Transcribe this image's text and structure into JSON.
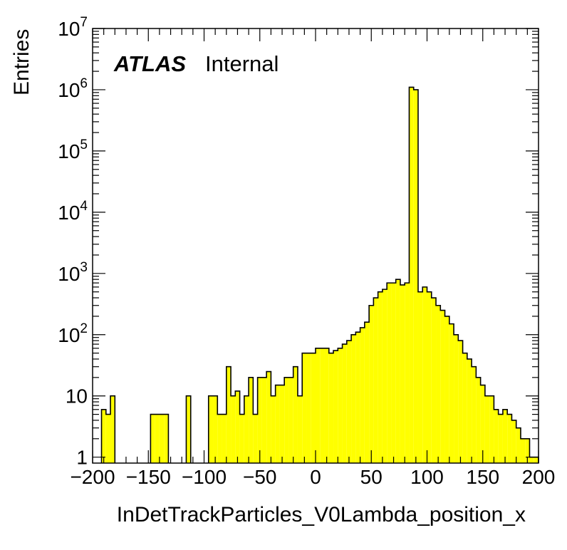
{
  "chart_data": {
    "type": "histogram",
    "title": "",
    "xlabel": "InDetTrackParticles_V0Lambda_position_x",
    "ylabel": "Entries",
    "xlim": [
      -200,
      200
    ],
    "ylim": [
      0.8,
      10000000
    ],
    "yscale": "log",
    "grid": false,
    "fill_color": "#ffff00",
    "line_color": "#000000",
    "bin_width": 4,
    "x_ticks": [
      "−200",
      "−150",
      "−100",
      "−50",
      "0",
      "50",
      "100",
      "150",
      "200"
    ],
    "x_tick_values": [
      -200,
      -150,
      -100,
      -50,
      0,
      50,
      100,
      150,
      200
    ],
    "y_ticks": [
      {
        "base": "1",
        "exp": "",
        "value": 1
      },
      {
        "base": "10",
        "exp": "",
        "value": 10
      },
      {
        "base": "10",
        "exp": "2",
        "value": 100
      },
      {
        "base": "10",
        "exp": "3",
        "value": 1000
      },
      {
        "base": "10",
        "exp": "4",
        "value": 10000
      },
      {
        "base": "10",
        "exp": "5",
        "value": 100000
      },
      {
        "base": "10",
        "exp": "6",
        "value": 1000000
      },
      {
        "base": "10",
        "exp": "7",
        "value": 10000000
      }
    ],
    "bin_edges_start": -200,
    "values": [
      0,
      0,
      6,
      5,
      10,
      0,
      0,
      0,
      0,
      0,
      0,
      0,
      0,
      5,
      5,
      5,
      5,
      0,
      0,
      0,
      0,
      10,
      0,
      0,
      0,
      0,
      10,
      10,
      5,
      5,
      30,
      10,
      12,
      5,
      10,
      20,
      5,
      20,
      20,
      25,
      10,
      15,
      15,
      20,
      20,
      30,
      10,
      50,
      50,
      50,
      60,
      60,
      60,
      50,
      55,
      60,
      70,
      80,
      100,
      110,
      130,
      160,
      300,
      400,
      500,
      550,
      700,
      700,
      800,
      650,
      700,
      1100000,
      1000000,
      500,
      600,
      500,
      400,
      300,
      250,
      200,
      150,
      100,
      80,
      50,
      40,
      30,
      20,
      15,
      10,
      10,
      6,
      5,
      6,
      5,
      4,
      3,
      2,
      2,
      1,
      1
    ],
    "annotations": [
      {
        "text": "ATLAS",
        "style": "bold-italic"
      },
      {
        "text": "Internal",
        "style": "normal"
      }
    ]
  }
}
